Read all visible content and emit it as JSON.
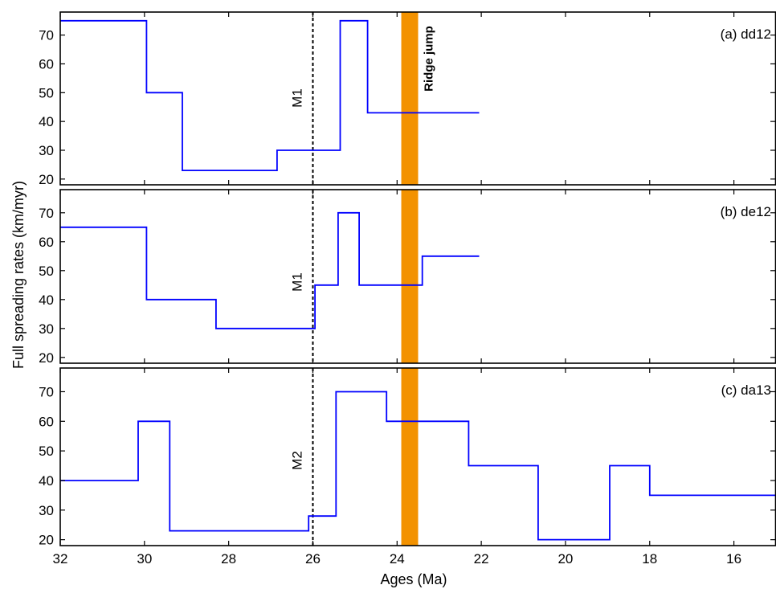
{
  "chart_data": {
    "type": "line",
    "shared_xaxis": {
      "label": "Ages (Ma)",
      "range": [
        32,
        15
      ],
      "reversed": true,
      "ticks": [
        32,
        30,
        28,
        26,
        24,
        22,
        20,
        18,
        16
      ],
      "tick_labels": [
        "32",
        "30",
        "28",
        "26",
        "24",
        "22",
        "20",
        "18",
        "16"
      ]
    },
    "shared_ylabel": "Full spreading rates (km/myr)",
    "ridge_jump": {
      "label": "Ridge jump",
      "x_start": 23.9,
      "x_end": 23.5,
      "color": "#f39200"
    },
    "colors": {
      "series": "#0000ff",
      "axes": "#000000",
      "marker_line": "#000000"
    },
    "panels": [
      {
        "label": "(a) dd12",
        "ylim": [
          18,
          78
        ],
        "y_ticks": [
          20,
          30,
          40,
          50,
          60,
          70
        ],
        "y_tick_labels": [
          "20",
          "30",
          "40",
          "50",
          "60",
          "70"
        ],
        "marker": {
          "label": "M1",
          "x": 26.0
        },
        "show_ridge_label": true,
        "steps": [
          {
            "x_start": 32.0,
            "x_end": 29.95,
            "value": 75
          },
          {
            "x_start": 29.95,
            "x_end": 29.1,
            "value": 50
          },
          {
            "x_start": 29.1,
            "x_end": 26.85,
            "value": 23
          },
          {
            "x_start": 26.85,
            "x_end": 25.35,
            "value": 30
          },
          {
            "x_start": 25.35,
            "x_end": 24.7,
            "value": 75
          },
          {
            "x_start": 24.7,
            "x_end": 22.05,
            "value": 43
          }
        ]
      },
      {
        "label": "(b) de12",
        "ylim": [
          18,
          78
        ],
        "y_ticks": [
          20,
          30,
          40,
          50,
          60,
          70
        ],
        "y_tick_labels": [
          "20",
          "30",
          "40",
          "50",
          "60",
          "70"
        ],
        "marker": {
          "label": "M1",
          "x": 26.0
        },
        "show_ridge_label": false,
        "steps": [
          {
            "x_start": 32.0,
            "x_end": 29.95,
            "value": 65
          },
          {
            "x_start": 29.95,
            "x_end": 28.3,
            "value": 40
          },
          {
            "x_start": 28.3,
            "x_end": 25.95,
            "value": 30
          },
          {
            "x_start": 25.95,
            "x_end": 25.4,
            "value": 45
          },
          {
            "x_start": 25.4,
            "x_end": 24.9,
            "value": 70
          },
          {
            "x_start": 24.9,
            "x_end": 23.4,
            "value": 45
          },
          {
            "x_start": 23.4,
            "x_end": 22.05,
            "value": 55
          }
        ]
      },
      {
        "label": "(c) da13",
        "ylim": [
          18,
          78
        ],
        "y_ticks": [
          20,
          30,
          40,
          50,
          60,
          70
        ],
        "y_tick_labels": [
          "20",
          "30",
          "40",
          "50",
          "60",
          "70"
        ],
        "marker": {
          "label": "M2",
          "x": 26.0
        },
        "show_ridge_label": false,
        "steps": [
          {
            "x_start": 32.0,
            "x_end": 30.15,
            "value": 40
          },
          {
            "x_start": 30.15,
            "x_end": 29.4,
            "value": 60
          },
          {
            "x_start": 29.4,
            "x_end": 26.1,
            "value": 23
          },
          {
            "x_start": 26.1,
            "x_end": 25.45,
            "value": 28
          },
          {
            "x_start": 25.45,
            "x_end": 24.25,
            "value": 70
          },
          {
            "x_start": 24.25,
            "x_end": 22.3,
            "value": 60
          },
          {
            "x_start": 22.3,
            "x_end": 20.65,
            "value": 45
          },
          {
            "x_start": 20.65,
            "x_end": 18.95,
            "value": 20
          },
          {
            "x_start": 18.95,
            "x_end": 18.0,
            "value": 45
          },
          {
            "x_start": 18.0,
            "x_end": 15.0,
            "value": 35
          }
        ]
      }
    ]
  }
}
